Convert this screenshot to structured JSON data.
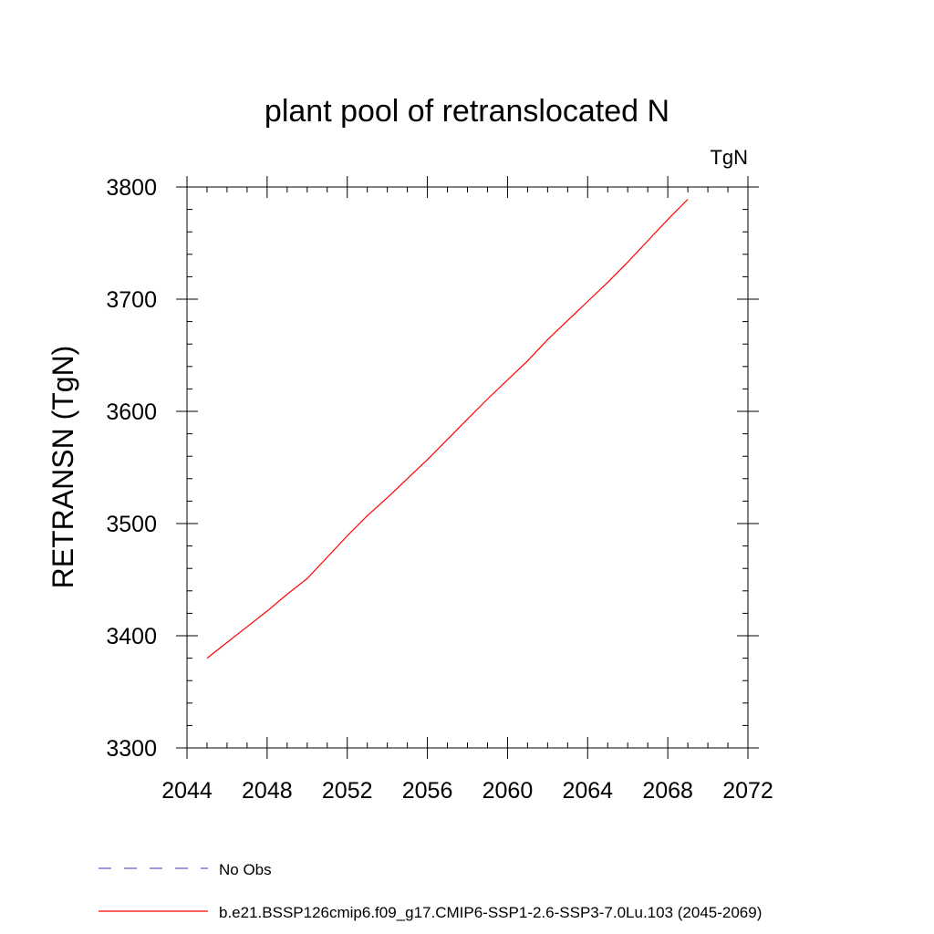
{
  "chart_data": {
    "type": "line",
    "title": "plant pool of retranslocated N",
    "units_label": "TgN",
    "ylabel": "RETRANSN  (TgN)",
    "xlabel": "",
    "xlim": [
      2044,
      2072
    ],
    "ylim": [
      3300,
      3800
    ],
    "x_ticks": [
      2044,
      2048,
      2052,
      2056,
      2060,
      2064,
      2068,
      2072
    ],
    "y_ticks": [
      3300,
      3400,
      3500,
      3600,
      3700,
      3800
    ],
    "x_minor_step": 1,
    "y_minor_step": 20,
    "grid": false,
    "legend_position": "bottom",
    "series": [
      {
        "name": "No Obs",
        "color": "#6a5acd",
        "dash": "dashed",
        "x": [],
        "y": []
      },
      {
        "name": "b.e21.BSSP126cmip6.f09_g17.CMIP6-SSP1-2.6-SSP3-7.0Lu.103 (2045-2069)",
        "color": "#ff0000",
        "dash": "solid",
        "x": [
          2045,
          2046,
          2047,
          2048,
          2049,
          2050,
          2051,
          2052,
          2053,
          2054,
          2055,
          2056,
          2057,
          2058,
          2059,
          2060,
          2061,
          2062,
          2063,
          2064,
          2065,
          2066,
          2067,
          2068,
          2069
        ],
        "y": [
          3380,
          3394,
          3408,
          3422,
          3437,
          3451,
          3470,
          3489,
          3507,
          3523,
          3540,
          3557,
          3575,
          3593,
          3611,
          3628,
          3645,
          3664,
          3681,
          3698,
          3715,
          3733,
          3752,
          3771,
          3789
        ]
      }
    ]
  }
}
